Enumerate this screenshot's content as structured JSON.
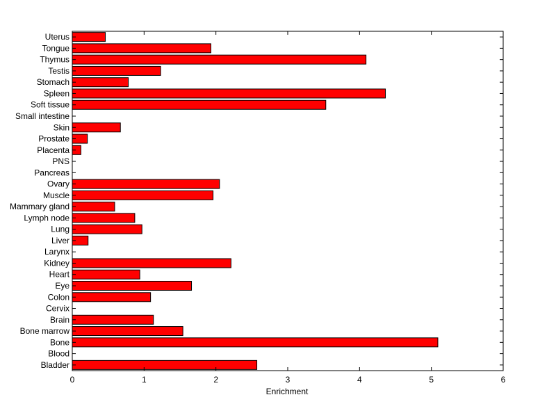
{
  "chart_data": {
    "type": "bar",
    "orientation": "horizontal",
    "xlabel": "Enrichment",
    "ylabel": "",
    "xlim": [
      0,
      6
    ],
    "xticks": [
      0,
      1,
      2,
      3,
      4,
      5,
      6
    ],
    "grid": false,
    "bar_color": "#ff0000",
    "categories": [
      "Bladder",
      "Blood",
      "Bone",
      "Bone marrow",
      "Brain",
      "Cervix",
      "Colon",
      "Eye",
      "Heart",
      "Kidney",
      "Larynx",
      "Liver",
      "Lung",
      "Lymph node",
      "Mammary gland",
      "Muscle",
      "Ovary",
      "Pancreas",
      "PNS",
      "Placenta",
      "Prostate",
      "Skin",
      "Small intestine",
      "Soft tissue",
      "Spleen",
      "Stomach",
      "Testis",
      "Thymus",
      "Tongue",
      "Uterus"
    ],
    "values": [
      2.57,
      0,
      5.09,
      1.54,
      1.13,
      0,
      1.09,
      1.66,
      0.94,
      2.21,
      0,
      0.22,
      0.97,
      0.87,
      0.59,
      1.96,
      2.05,
      0,
      0,
      0.12,
      0.21,
      0.67,
      0,
      3.53,
      4.36,
      0.78,
      1.23,
      4.09,
      1.93,
      0.46
    ]
  }
}
